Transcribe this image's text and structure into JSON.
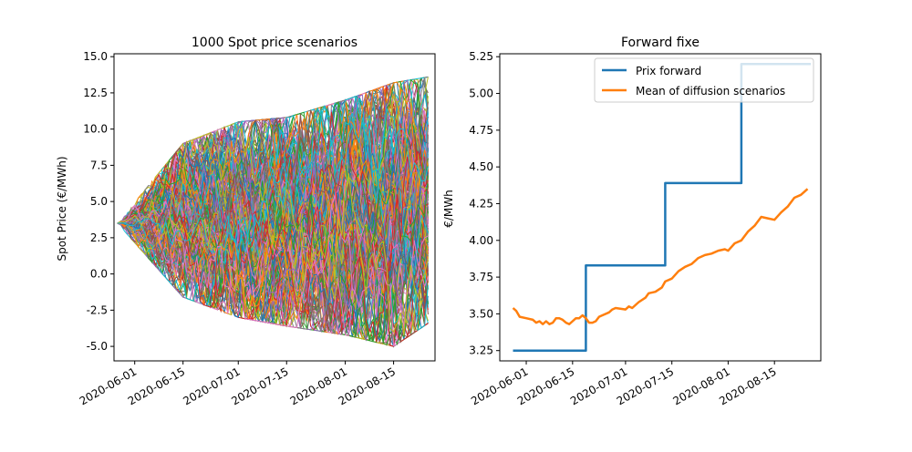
{
  "chart_data": [
    {
      "type": "line",
      "title": "1000 Spot price scenarios",
      "xlabel": "",
      "ylabel": "Spot Price (€/MWh)",
      "x_range": [
        "2020-05-26",
        "2020-08-27"
      ],
      "xticks": [
        "2020-06-01",
        "2020-06-15",
        "2020-07-01",
        "2020-07-15",
        "2020-08-01",
        "2020-08-15"
      ],
      "ylim": [
        -6.0,
        15.2
      ],
      "yticks": [
        "-5.0",
        "-2.5",
        "0.0",
        "2.5",
        "5.0",
        "7.5",
        "10.0",
        "12.5",
        "15.0"
      ],
      "grid": false,
      "scenario_count": 1000,
      "start_value": 3.5,
      "start_date": "2020-05-27",
      "end_date": "2020-08-25",
      "upper_envelope_approx": [
        {
          "x": "2020-05-27",
          "y": 3.5
        },
        {
          "x": "2020-06-15",
          "y": 9.0
        },
        {
          "x": "2020-07-01",
          "y": 10.5
        },
        {
          "x": "2020-07-15",
          "y": 10.8
        },
        {
          "x": "2020-08-01",
          "y": 12.0
        },
        {
          "x": "2020-08-15",
          "y": 13.2
        },
        {
          "x": "2020-08-25",
          "y": 13.6
        }
      ],
      "lower_envelope_approx": [
        {
          "x": "2020-05-27",
          "y": 3.5
        },
        {
          "x": "2020-06-15",
          "y": -1.6
        },
        {
          "x": "2020-07-01",
          "y": -3.0
        },
        {
          "x": "2020-07-15",
          "y": -3.6
        },
        {
          "x": "2020-08-01",
          "y": -4.2
        },
        {
          "x": "2020-08-15",
          "y": -5.0
        },
        {
          "x": "2020-08-25",
          "y": -3.4
        }
      ],
      "colors": [
        "#1f77b4",
        "#ff7f0e",
        "#2ca02c",
        "#d62728",
        "#9467bd",
        "#8c564b",
        "#e377c2",
        "#7f7f7f",
        "#bcbd22",
        "#17becf"
      ]
    },
    {
      "type": "line",
      "title": "Forward fixe",
      "xlabel": "",
      "ylabel": "€/MWh",
      "x_range": [
        "2020-05-24",
        "2020-08-29"
      ],
      "xticks": [
        "2020-06-01",
        "2020-06-15",
        "2020-07-01",
        "2020-07-15",
        "2020-08-01",
        "2020-08-15"
      ],
      "ylim": [
        3.18,
        5.27
      ],
      "yticks": [
        "3.25",
        "3.50",
        "3.75",
        "4.00",
        "4.25",
        "4.50",
        "4.75",
        "5.00",
        "5.25"
      ],
      "grid": false,
      "legend_placement": "top-right",
      "series": [
        {
          "name": "Prix forward",
          "color": "#1f77b4",
          "step": true,
          "points": [
            {
              "x": "2020-05-28",
              "y": 3.25
            },
            {
              "x": "2020-06-19",
              "y": 3.25
            },
            {
              "x": "2020-06-19",
              "y": 3.83
            },
            {
              "x": "2020-07-13",
              "y": 3.83
            },
            {
              "x": "2020-07-13",
              "y": 4.39
            },
            {
              "x": "2020-08-05",
              "y": 4.39
            },
            {
              "x": "2020-08-05",
              "y": 5.2
            },
            {
              "x": "2020-08-26",
              "y": 5.2
            }
          ]
        },
        {
          "name": "Mean of diffusion scenarios",
          "color": "#ff7f0e",
          "step": false,
          "points": [
            {
              "x": "2020-05-28",
              "y": 3.54
            },
            {
              "x": "2020-05-29",
              "y": 3.52
            },
            {
              "x": "2020-05-30",
              "y": 3.48
            },
            {
              "x": "2020-06-01",
              "y": 3.47
            },
            {
              "x": "2020-06-03",
              "y": 3.46
            },
            {
              "x": "2020-06-04",
              "y": 3.44
            },
            {
              "x": "2020-06-05",
              "y": 3.45
            },
            {
              "x": "2020-06-06",
              "y": 3.43
            },
            {
              "x": "2020-06-07",
              "y": 3.45
            },
            {
              "x": "2020-06-08",
              "y": 3.43
            },
            {
              "x": "2020-06-09",
              "y": 3.44
            },
            {
              "x": "2020-06-10",
              "y": 3.47
            },
            {
              "x": "2020-06-11",
              "y": 3.47
            },
            {
              "x": "2020-06-12",
              "y": 3.46
            },
            {
              "x": "2020-06-13",
              "y": 3.44
            },
            {
              "x": "2020-06-14",
              "y": 3.43
            },
            {
              "x": "2020-06-15",
              "y": 3.45
            },
            {
              "x": "2020-06-16",
              "y": 3.47
            },
            {
              "x": "2020-06-17",
              "y": 3.47
            },
            {
              "x": "2020-06-18",
              "y": 3.49
            },
            {
              "x": "2020-06-19",
              "y": 3.47
            },
            {
              "x": "2020-06-20",
              "y": 3.44
            },
            {
              "x": "2020-06-21",
              "y": 3.44
            },
            {
              "x": "2020-06-22",
              "y": 3.45
            },
            {
              "x": "2020-06-23",
              "y": 3.48
            },
            {
              "x": "2020-06-24",
              "y": 3.49
            },
            {
              "x": "2020-06-26",
              "y": 3.51
            },
            {
              "x": "2020-06-27",
              "y": 3.53
            },
            {
              "x": "2020-06-28",
              "y": 3.54
            },
            {
              "x": "2020-07-01",
              "y": 3.53
            },
            {
              "x": "2020-07-02",
              "y": 3.55
            },
            {
              "x": "2020-07-03",
              "y": 3.54
            },
            {
              "x": "2020-07-05",
              "y": 3.58
            },
            {
              "x": "2020-07-07",
              "y": 3.61
            },
            {
              "x": "2020-07-08",
              "y": 3.64
            },
            {
              "x": "2020-07-10",
              "y": 3.65
            },
            {
              "x": "2020-07-12",
              "y": 3.68
            },
            {
              "x": "2020-07-13",
              "y": 3.72
            },
            {
              "x": "2020-07-15",
              "y": 3.74
            },
            {
              "x": "2020-07-17",
              "y": 3.79
            },
            {
              "x": "2020-07-19",
              "y": 3.82
            },
            {
              "x": "2020-07-21",
              "y": 3.84
            },
            {
              "x": "2020-07-23",
              "y": 3.88
            },
            {
              "x": "2020-07-25",
              "y": 3.9
            },
            {
              "x": "2020-07-27",
              "y": 3.91
            },
            {
              "x": "2020-07-29",
              "y": 3.93
            },
            {
              "x": "2020-07-31",
              "y": 3.94
            },
            {
              "x": "2020-08-01",
              "y": 3.93
            },
            {
              "x": "2020-08-03",
              "y": 3.98
            },
            {
              "x": "2020-08-05",
              "y": 4.0
            },
            {
              "x": "2020-08-07",
              "y": 4.06
            },
            {
              "x": "2020-08-09",
              "y": 4.1
            },
            {
              "x": "2020-08-11",
              "y": 4.16
            },
            {
              "x": "2020-08-13",
              "y": 4.15
            },
            {
              "x": "2020-08-15",
              "y": 4.14
            },
            {
              "x": "2020-08-17",
              "y": 4.19
            },
            {
              "x": "2020-08-19",
              "y": 4.23
            },
            {
              "x": "2020-08-21",
              "y": 4.29
            },
            {
              "x": "2020-08-23",
              "y": 4.31
            },
            {
              "x": "2020-08-25",
              "y": 4.35
            }
          ]
        }
      ]
    }
  ]
}
